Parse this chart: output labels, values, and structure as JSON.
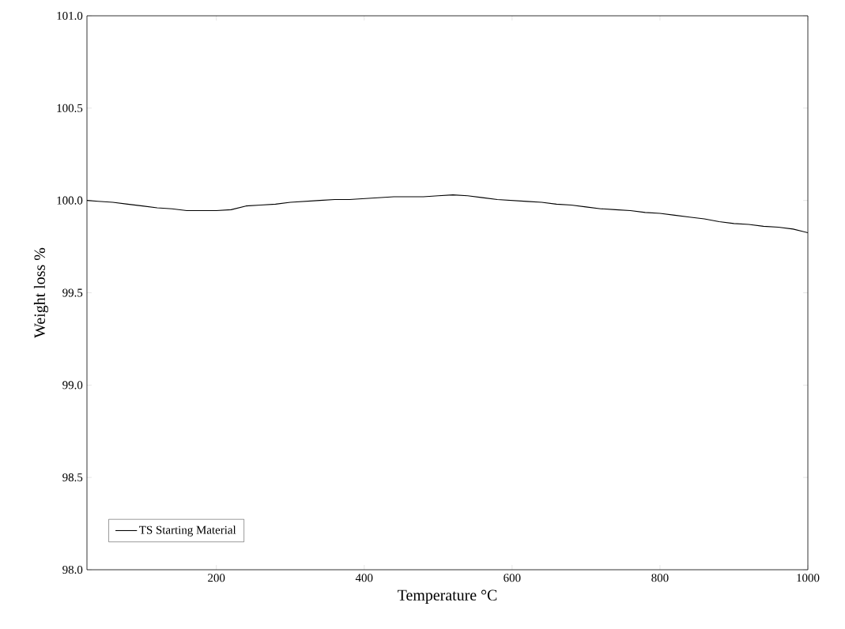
{
  "chart_data": {
    "type": "line",
    "xlabel": "Temperature °C",
    "ylabel": "Weight loss %",
    "xlim": [
      25,
      1000
    ],
    "xticks": [
      200,
      400,
      600,
      800,
      1000
    ],
    "ylim": [
      98.0,
      101.0
    ],
    "yticks": [
      {
        "value": 98.0,
        "label": "98.0"
      },
      {
        "value": 98.5,
        "label": "98.5"
      },
      {
        "value": 99.0,
        "label": "99.0"
      },
      {
        "value": 99.5,
        "label": "99.5"
      },
      {
        "value": 100.0,
        "label": "100.0"
      },
      {
        "value": 100.5,
        "label": "100.5"
      },
      {
        "value": 101.0,
        "label": "101.0"
      }
    ],
    "grid": false,
    "legend": "bottom left",
    "marker": "none",
    "line_style": "solid",
    "x": [
      25,
      40,
      60,
      80,
      100,
      120,
      140,
      160,
      180,
      200,
      220,
      240,
      260,
      280,
      300,
      320,
      340,
      360,
      380,
      400,
      420,
      440,
      460,
      480,
      500,
      520,
      540,
      560,
      580,
      600,
      620,
      640,
      660,
      680,
      700,
      720,
      740,
      760,
      780,
      800,
      820,
      840,
      860,
      880,
      900,
      920,
      940,
      960,
      980,
      1000
    ],
    "series": [
      {
        "name": "TS Starting Material",
        "color": "#000000",
        "values": [
          100.0,
          99.995,
          99.99,
          99.98,
          99.97,
          99.96,
          99.955,
          99.945,
          99.945,
          99.945,
          99.95,
          99.97,
          99.975,
          99.98,
          99.99,
          99.995,
          100.0,
          100.005,
          100.005,
          100.01,
          100.015,
          100.02,
          100.02,
          100.02,
          100.025,
          100.03,
          100.025,
          100.015,
          100.005,
          100.0,
          99.995,
          99.99,
          99.98,
          99.975,
          99.965,
          99.955,
          99.95,
          99.945,
          99.935,
          99.93,
          99.92,
          99.91,
          99.9,
          99.885,
          99.875,
          99.87,
          99.86,
          99.855,
          99.845,
          99.825
        ]
      }
    ]
  }
}
